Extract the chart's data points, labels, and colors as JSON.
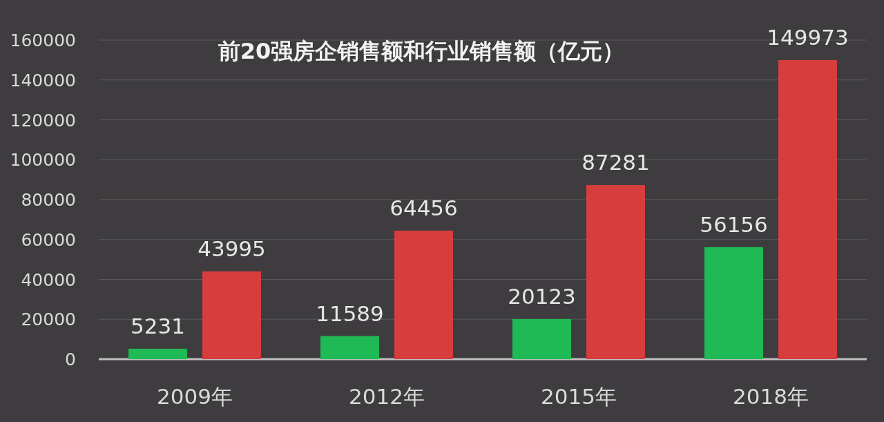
{
  "chart_data": {
    "type": "bar",
    "title": "前20强房企销售额和行业销售额（亿元）",
    "categories": [
      "2009年",
      "2012年",
      "2015年",
      "2018年"
    ],
    "series": [
      {
        "color": "#1fb955",
        "values": [
          5231,
          11589,
          20123,
          56156
        ]
      },
      {
        "color": "#d63d3d",
        "values": [
          43995,
          64456,
          87281,
          149973
        ]
      }
    ],
    "ylim": [
      0,
      160000
    ],
    "yticks": [
      0,
      20000,
      40000,
      60000,
      80000,
      100000,
      120000,
      140000,
      160000
    ],
    "grid": "y",
    "data_labels": true
  }
}
